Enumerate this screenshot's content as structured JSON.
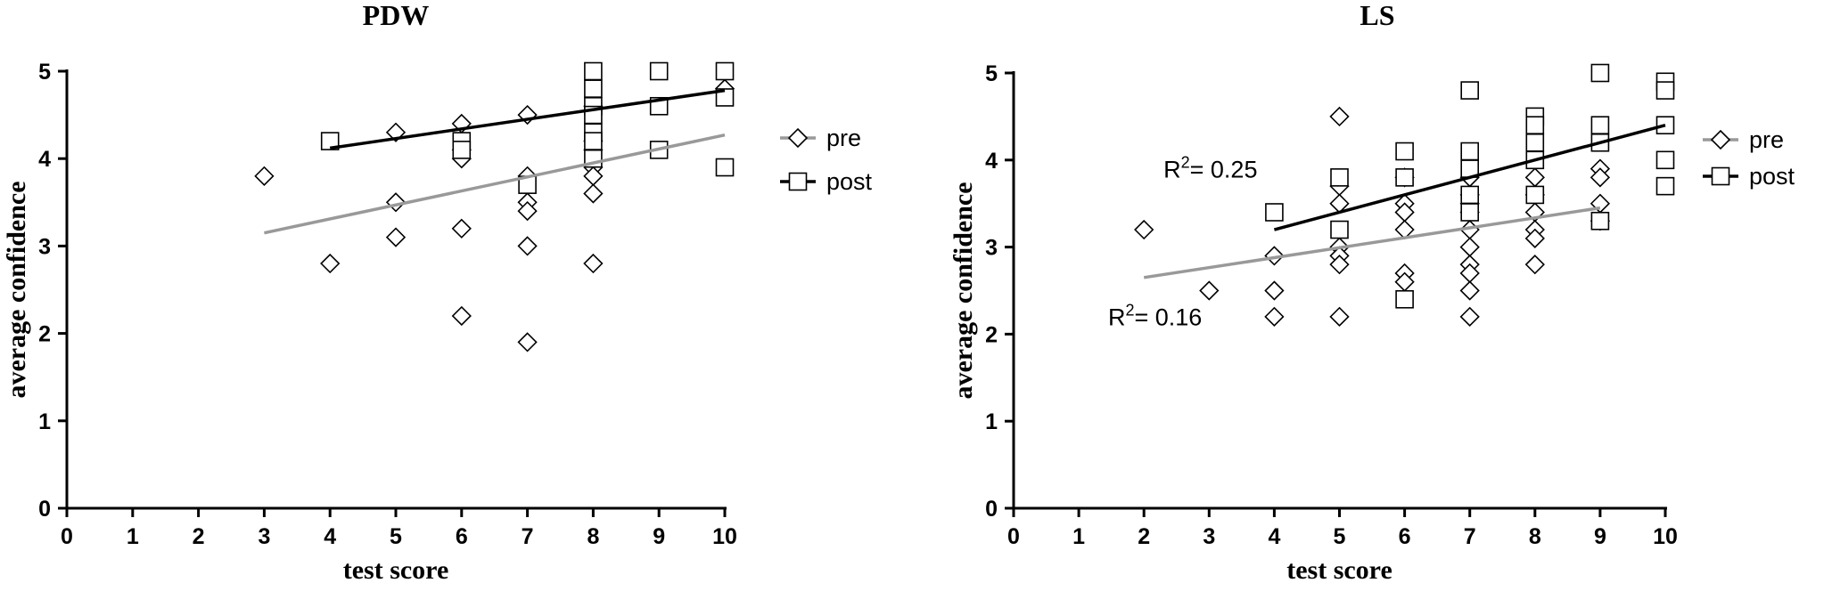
{
  "chart_data": [
    {
      "type": "scatter",
      "title": "PDW",
      "xlabel": "test score",
      "ylabel": "average confidence",
      "xlim": [
        0,
        10
      ],
      "ylim": [
        0,
        5
      ],
      "xticks": [
        "0",
        "1",
        "2",
        "3",
        "4",
        "5",
        "6",
        "7",
        "8",
        "9",
        "10"
      ],
      "yticks": [
        "0",
        "1",
        "2",
        "3",
        "4",
        "5"
      ],
      "grid": false,
      "legend_position": "right",
      "series": [
        {
          "name": "pre",
          "marker": "diamond",
          "color": "#000000",
          "line_color": "#999999",
          "points": [
            [
              3,
              3.8
            ],
            [
              4,
              2.8
            ],
            [
              5,
              4.3
            ],
            [
              5,
              3.5
            ],
            [
              5,
              3.1
            ],
            [
              6,
              4.4
            ],
            [
              6,
              4.1
            ],
            [
              6,
              4.0
            ],
            [
              6,
              3.2
            ],
            [
              6,
              2.2
            ],
            [
              7,
              4.5
            ],
            [
              7,
              3.8
            ],
            [
              7,
              3.5
            ],
            [
              7,
              3.4
            ],
            [
              7,
              3.0
            ],
            [
              7,
              1.9
            ],
            [
              8,
              4.6
            ],
            [
              8,
              4.2
            ],
            [
              8,
              4.1
            ],
            [
              8,
              3.9
            ],
            [
              8,
              3.8
            ],
            [
              8,
              3.6
            ],
            [
              8,
              2.8
            ],
            [
              10,
              4.8
            ]
          ],
          "fit": [
            [
              3,
              3.15
            ],
            [
              10,
              4.27
            ]
          ]
        },
        {
          "name": "post",
          "marker": "square",
          "color": "#000000",
          "line_color": "#000000",
          "points": [
            [
              4,
              4.2
            ],
            [
              6,
              4.2
            ],
            [
              6,
              4.1
            ],
            [
              7,
              3.7
            ],
            [
              8,
              5.0
            ],
            [
              8,
              4.8
            ],
            [
              8,
              4.6
            ],
            [
              8,
              4.5
            ],
            [
              8,
              4.3
            ],
            [
              8,
              4.2
            ],
            [
              8,
              4.0
            ],
            [
              9,
              5.0
            ],
            [
              9,
              4.6
            ],
            [
              9,
              4.1
            ],
            [
              10,
              5.0
            ],
            [
              10,
              4.7
            ],
            [
              10,
              3.9
            ]
          ],
          "fit": [
            [
              4,
              4.12
            ],
            [
              10,
              4.78
            ]
          ]
        }
      ],
      "annotations": []
    },
    {
      "type": "scatter",
      "title": "LS",
      "xlabel": "test score",
      "ylabel": "average confidence",
      "xlim": [
        0,
        10
      ],
      "ylim": [
        0,
        5
      ],
      "xticks": [
        "0",
        "1",
        "2",
        "3",
        "4",
        "5",
        "6",
        "7",
        "8",
        "9",
        "10"
      ],
      "yticks": [
        "0",
        "1",
        "2",
        "3",
        "4",
        "5"
      ],
      "grid": false,
      "legend_position": "right",
      "series": [
        {
          "name": "pre",
          "marker": "diamond",
          "color": "#000000",
          "line_color": "#999999",
          "points": [
            [
              2,
              3.2
            ],
            [
              3,
              2.5
            ],
            [
              4,
              2.9
            ],
            [
              4,
              2.5
            ],
            [
              4,
              2.2
            ],
            [
              5,
              4.5
            ],
            [
              5,
              3.7
            ],
            [
              5,
              3.5
            ],
            [
              5,
              3.0
            ],
            [
              5,
              2.9
            ],
            [
              5,
              2.8
            ],
            [
              5,
              2.2
            ],
            [
              6,
              3.8
            ],
            [
              6,
              3.5
            ],
            [
              6,
              3.4
            ],
            [
              6,
              3.2
            ],
            [
              6,
              2.7
            ],
            [
              6,
              2.6
            ],
            [
              7,
              3.8
            ],
            [
              7,
              3.6
            ],
            [
              7,
              3.5
            ],
            [
              7,
              3.4
            ],
            [
              7,
              3.2
            ],
            [
              7,
              3.0
            ],
            [
              7,
              2.8
            ],
            [
              7,
              2.7
            ],
            [
              7,
              2.5
            ],
            [
              7,
              2.2
            ],
            [
              8,
              3.8
            ],
            [
              8,
              3.6
            ],
            [
              8,
              3.4
            ],
            [
              8,
              3.2
            ],
            [
              8,
              3.1
            ],
            [
              8,
              2.8
            ],
            [
              9,
              3.9
            ],
            [
              9,
              3.8
            ],
            [
              9,
              3.5
            ],
            [
              9,
              3.3
            ]
          ],
          "fit": [
            [
              2,
              2.65
            ],
            [
              9,
              3.45
            ]
          ]
        },
        {
          "name": "post",
          "marker": "square",
          "color": "#000000",
          "line_color": "#000000",
          "points": [
            [
              4,
              3.4
            ],
            [
              5,
              3.8
            ],
            [
              5,
              3.2
            ],
            [
              6,
              4.1
            ],
            [
              6,
              3.8
            ],
            [
              6,
              2.4
            ],
            [
              7,
              4.8
            ],
            [
              7,
              4.1
            ],
            [
              7,
              3.9
            ],
            [
              7,
              3.6
            ],
            [
              7,
              3.4
            ],
            [
              8,
              4.5
            ],
            [
              8,
              4.4
            ],
            [
              8,
              4.2
            ],
            [
              8,
              4.0
            ],
            [
              8,
              3.6
            ],
            [
              9,
              5.0
            ],
            [
              9,
              4.4
            ],
            [
              9,
              4.2
            ],
            [
              9,
              3.3
            ],
            [
              10,
              4.9
            ],
            [
              10,
              4.8
            ],
            [
              10,
              4.4
            ],
            [
              10,
              4.0
            ],
            [
              10,
              3.7
            ]
          ],
          "fit": [
            [
              4,
              3.2
            ],
            [
              10,
              4.4
            ]
          ]
        }
      ],
      "annotations": [
        {
          "label": "R",
          "sup": "2",
          "text": "= 0.25",
          "x": 2.3,
          "y": 3.8
        },
        {
          "label": "R",
          "sup": "2",
          "text": "= 0.16",
          "x": 1.45,
          "y": 2.1
        }
      ]
    }
  ]
}
